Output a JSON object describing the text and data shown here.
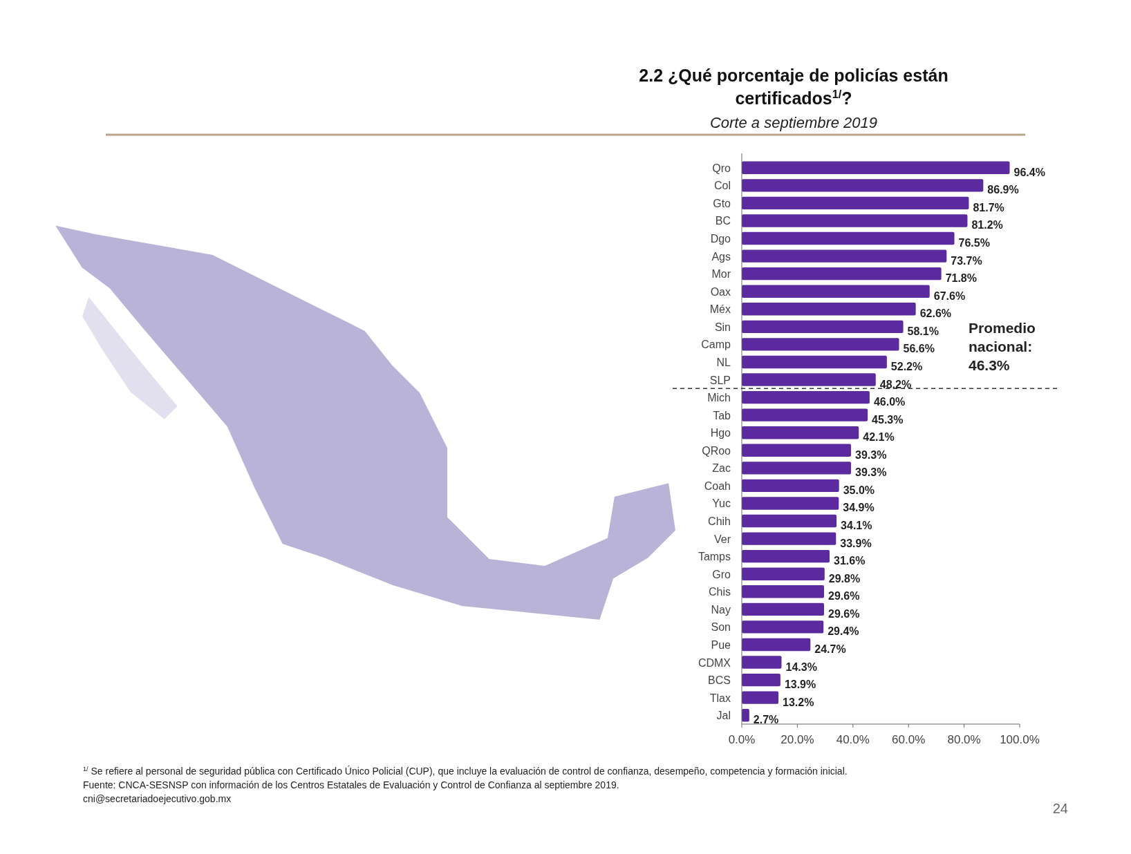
{
  "chart_data": {
    "type": "bar",
    "orientation": "horizontal",
    "title": "2.2 ¿Qué porcentaje de policías están certificados$^{1/}$?",
    "subtitle": "Corte a septiembre 2019",
    "categories": [
      "Qro",
      "Col",
      "Gto",
      "BC",
      "Dgo",
      "Ags",
      "Mor",
      "Oax",
      "Méx",
      "Sin",
      "Camp",
      "NL",
      "SLP",
      "Mich",
      "Tab",
      "Hgo",
      "QRoo",
      "Zac",
      "Coah",
      "Yuc",
      "Chih",
      "Ver",
      "Tamps",
      "Gro",
      "Chis",
      "Nay",
      "Son",
      "Pue",
      "CDMX",
      "BCS",
      "Tlax",
      "Jal"
    ],
    "values": [
      96.4,
      86.9,
      81.7,
      81.2,
      76.5,
      73.7,
      71.8,
      67.6,
      62.6,
      58.1,
      56.6,
      52.2,
      48.2,
      46.0,
      45.3,
      42.1,
      39.3,
      39.3,
      35.0,
      34.9,
      34.1,
      33.9,
      31.6,
      29.8,
      29.6,
      29.6,
      29.4,
      24.7,
      14.3,
      13.9,
      13.2,
      2.7
    ],
    "value_labels": [
      "96.4%",
      "86.9%",
      "81.7%",
      "81.2%",
      "76.5%",
      "73.7%",
      "71.8%",
      "67.6%",
      "62.6%",
      "58.1%",
      "56.6%",
      "52.2%",
      "48.2%",
      "46.0%",
      "45.3%",
      "42.1%",
      "39.3%",
      "39.3%",
      "35.0%",
      "34.9%",
      "34.1%",
      "33.9%",
      "31.6%",
      "29.8%",
      "29.6%",
      "29.6%",
      "29.4%",
      "24.7%",
      "14.3%",
      "13.9%",
      "13.2%",
      "2.7%"
    ],
    "color": "#5b2a9e",
    "xlim": [
      0,
      100
    ],
    "xticks": [
      {
        "value": 0,
        "label": "0.0%"
      },
      {
        "value": 20,
        "label": "20.0%"
      },
      {
        "value": 40,
        "label": "40.0%"
      },
      {
        "value": 60,
        "label": "60.0%"
      },
      {
        "value": 80,
        "label": "80.0%"
      },
      {
        "value": 100,
        "label": "100.0%"
      }
    ],
    "grid": false,
    "annotations": [
      "Promedio nacional: 46.3%",
      "$^{1/}$ Se refiere al personal de seguridad pública con Certificado Único Policial (CUP), que incluye la evaluación de control de confianza, desempeño, competencia y formación inicial.",
      "Fuente: CNCA-SESNSP con información de los Centros Estatales de Evaluación y Control de Confianza al septiembre 2019.",
      "cni@secretariadoejecutivo.gob.mx",
      "24"
    ]
  }
}
